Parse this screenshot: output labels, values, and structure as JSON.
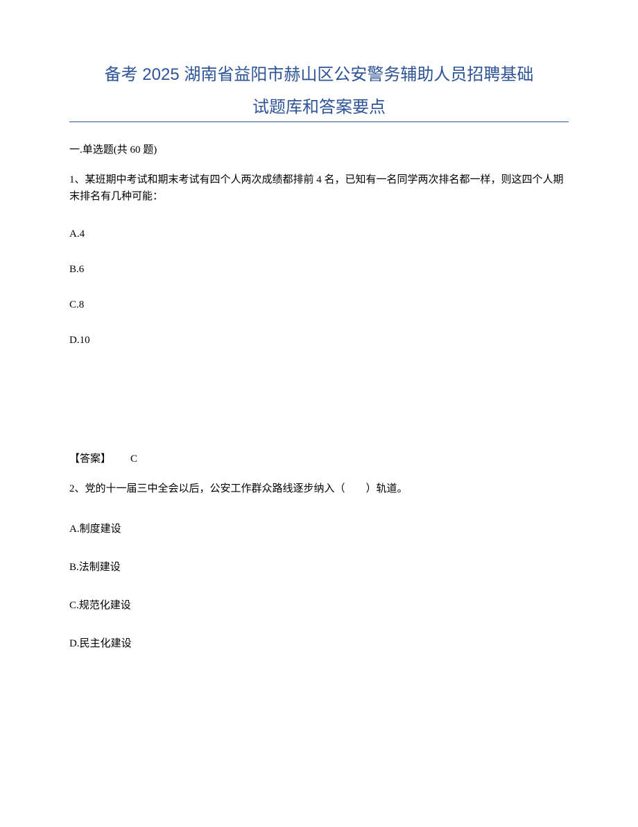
{
  "document": {
    "title_line1": "备考 2025 湖南省益阳市赫山区公安警务辅助人员招聘基础",
    "title_line2": "试题库和答案要点",
    "title_color": "#2e5496",
    "underline_color": "#2e5496",
    "background_color": "#ffffff",
    "text_color": "#000000",
    "body_fontsize": 15,
    "title_fontsize": 24
  },
  "section": {
    "heading": "一.单选题(共 60 题)"
  },
  "questions": [
    {
      "number": "1、",
      "text": "某班期中考试和期末考试有四个人两次成绩都排前 4 名，已知有一名同学两次排名都一样，则这四个人期末排名有几种可能：",
      "options": {
        "A": "A.4",
        "B": "B.6",
        "C": "C.8",
        "D": "D.10"
      },
      "answer_label": "【答案】",
      "answer_value": "C"
    },
    {
      "number": "2、",
      "text": "党的十一届三中全会以后，公安工作群众路线逐步纳入（　　）轨道。",
      "options": {
        "A": "A.制度建设",
        "B": "B.法制建设",
        "C": "C.规范化建设",
        "D": "D.民主化建设"
      }
    }
  ]
}
